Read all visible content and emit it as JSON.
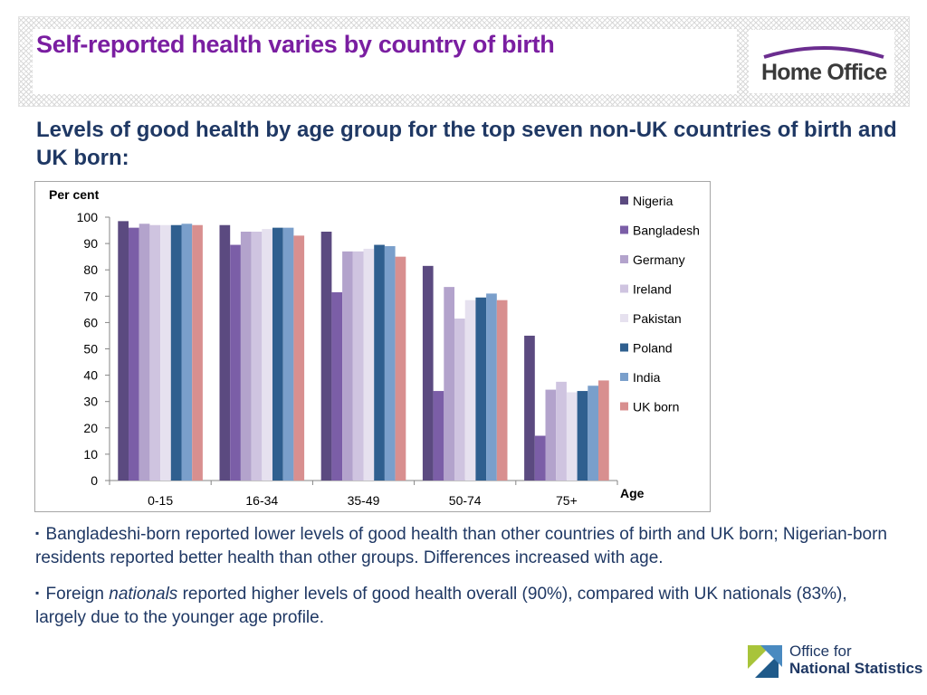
{
  "header": {
    "title": "Self-reported health varies by country of birth",
    "logo_text": "Home Office",
    "title_color": "#7a1ea1"
  },
  "subtitle": "Levels of good health by age group for the top seven non-UK countries of birth and UK born:",
  "chart_data": {
    "type": "bar",
    "ylabel": "Per cent",
    "xlabel": "Age",
    "ylim": [
      0,
      100
    ],
    "yticks": [
      0,
      10,
      20,
      30,
      40,
      50,
      60,
      70,
      80,
      90,
      100
    ],
    "categories": [
      "0-15",
      "16-34",
      "35-49",
      "50-74",
      "75+"
    ],
    "legend_position": "right",
    "grid": false,
    "series": [
      {
        "name": "Nigeria",
        "color": "#5b4a80",
        "values": [
          98.5,
          97,
          94.5,
          81.5,
          55
        ]
      },
      {
        "name": "Bangladesh",
        "color": "#7b5ea7",
        "values": [
          96,
          89.5,
          71.5,
          34,
          17
        ]
      },
      {
        "name": "Germany",
        "color": "#b3a3cc",
        "values": [
          97.5,
          94.5,
          87,
          73.5,
          34.5
        ]
      },
      {
        "name": "Ireland",
        "color": "#cfc4e0",
        "values": [
          97,
          94.5,
          87,
          61.5,
          37.5
        ]
      },
      {
        "name": "Pakistan",
        "color": "#e6e1ef",
        "values": [
          97,
          95.5,
          88,
          68.5,
          33.5
        ]
      },
      {
        "name": "Poland",
        "color": "#2f5f8f",
        "values": [
          97,
          96,
          89.5,
          69.5,
          34
        ]
      },
      {
        "name": "India",
        "color": "#7a9fcb",
        "values": [
          97.5,
          96,
          89,
          71,
          36
        ]
      },
      {
        "name": "UK born",
        "color": "#d88f8f",
        "values": [
          97,
          93,
          85,
          68.5,
          38
        ]
      }
    ]
  },
  "bullets": {
    "marker": "▪",
    "b1": "Bangladeshi-born reported lower levels of good health than other  countries of birth and UK born; Nigerian-born residents reported better health than other groups. Differences increased with age.",
    "b2_pre": "Foreign ",
    "b2_em": "nationals",
    "b2_post": " reported higher levels of good health overall (90%), compared with UK nationals (83%), largely due to the younger age profile."
  },
  "footer": {
    "ons_line1": "Office for",
    "ons_line2": "National Statistics"
  }
}
